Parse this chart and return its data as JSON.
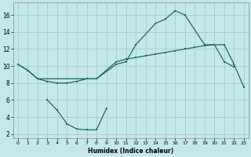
{
  "bg_color": "#c5e8eb",
  "grid_color": "#a0cdd2",
  "line_color": "#1a6b5a",
  "xlabel": "Humidex (Indice chaleur)",
  "ylim": [
    1.5,
    17.5
  ],
  "xlim": [
    -0.5,
    23.5
  ],
  "yticks": [
    2,
    4,
    6,
    8,
    10,
    12,
    14,
    16
  ],
  "xticks": [
    0,
    1,
    2,
    3,
    4,
    5,
    6,
    7,
    8,
    9,
    10,
    11,
    12,
    13,
    14,
    15,
    16,
    17,
    18,
    19,
    20,
    21,
    22,
    23
  ],
  "s1_x": [
    0,
    1,
    2,
    8,
    10,
    11,
    12,
    14,
    15,
    16,
    17,
    19,
    20,
    21,
    22
  ],
  "s1_y": [
    10.2,
    9.5,
    8.5,
    8.5,
    10.2,
    10.5,
    12.5,
    15.0,
    15.5,
    16.5,
    16.0,
    12.5,
    12.5,
    10.5,
    9.9
  ],
  "s2_x": [
    0,
    1,
    2,
    3,
    4,
    5,
    6,
    7,
    8,
    10,
    11,
    12,
    13,
    14,
    15,
    16,
    17,
    18,
    19,
    20,
    21,
    22,
    23
  ],
  "s2_y": [
    10.2,
    9.5,
    8.5,
    8.2,
    8.0,
    8.0,
    8.2,
    8.5,
    8.5,
    10.5,
    10.8,
    11.0,
    11.2,
    11.4,
    11.6,
    11.8,
    12.0,
    12.2,
    12.4,
    12.5,
    12.5,
    10.2,
    7.5
  ],
  "s3_x": [
    3,
    4,
    5,
    6,
    7,
    8,
    9
  ],
  "s3_y": [
    6.0,
    4.8,
    3.2,
    2.6,
    2.5,
    2.5,
    5.0
  ]
}
